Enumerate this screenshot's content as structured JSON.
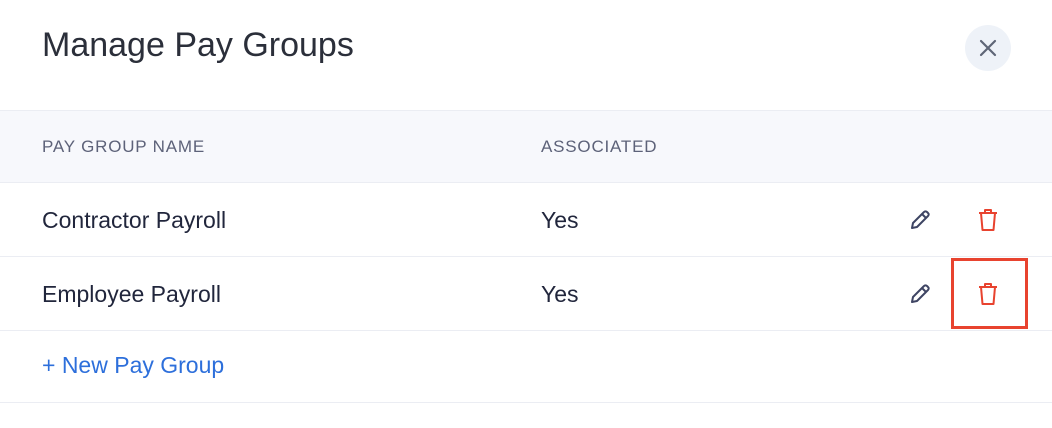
{
  "dialog": {
    "title": "Manage Pay Groups",
    "close_icon": "close-icon"
  },
  "table": {
    "headers": [
      "PAY GROUP NAME",
      "ASSOCIATED"
    ],
    "rows": [
      {
        "name": "Contractor Payroll",
        "associated": "Yes"
      },
      {
        "name": "Employee Payroll",
        "associated": "Yes"
      }
    ]
  },
  "new_button": "+ New Pay Group",
  "colors": {
    "accent": "#2d6fdb",
    "delete": "#e8432f",
    "edit": "#3e4463",
    "highlight": "#e8432f"
  }
}
